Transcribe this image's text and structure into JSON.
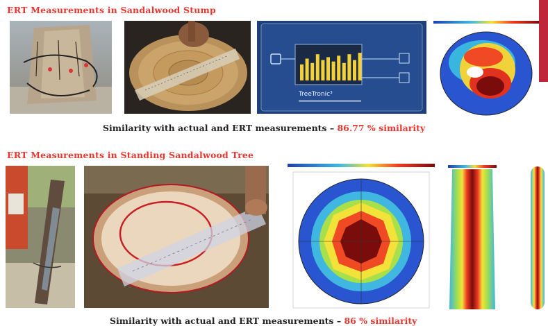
{
  "section1": {
    "heading": "ERT Measurements in Sandalwood Stump",
    "caption": "Similarity with actual and ERT measurements –",
    "similarity": "86.77 % similarity"
  },
  "section2": {
    "heading": "ERT Measurements in Standing Sandalwood Tree",
    "caption": "Similarity with actual and ERT measurements –",
    "similarity": "86 % similarity"
  },
  "device": {
    "brand": "TreeTronic³",
    "bar_levels": [
      0.55,
      0.75,
      0.6,
      0.9,
      0.7,
      0.8,
      0.65,
      0.85,
      0.6,
      0.9,
      0.7,
      0.95
    ]
  },
  "colors": {
    "heading": "#e8362f",
    "accent_bar": "#c0263a",
    "tomography_low": "#1f3fae",
    "tomography_high": "#7a0c0c"
  },
  "icons": {
    "stump_photo": "stump-with-electrodes-photo",
    "cross_section_photo": "wood-cross-section-photo",
    "device_photo": "ert-device-screen-photo",
    "tomogram": "ert-tomogram-image"
  }
}
